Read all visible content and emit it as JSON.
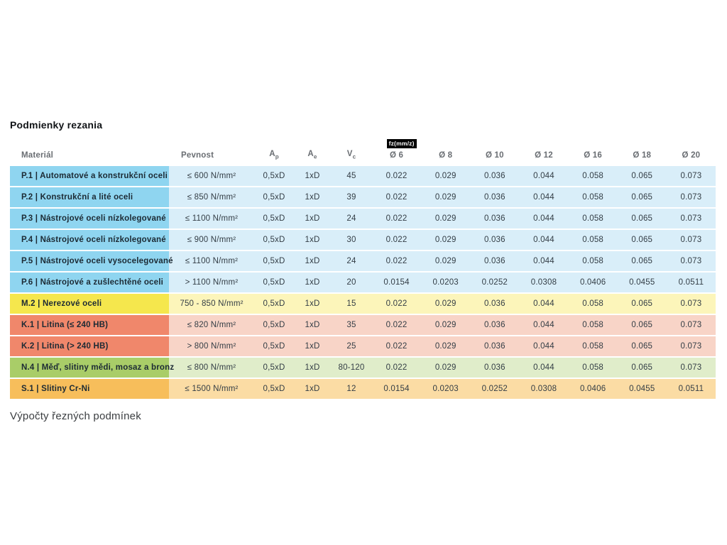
{
  "page": {
    "title": "Podmienky rezania",
    "footer_heading": "Výpočty řezných podmínek"
  },
  "table": {
    "fz_badge": "fz(mm/z)",
    "headers": {
      "material": "Materiál",
      "pevnost": "Pevnost",
      "ap_main": "A",
      "ap_sub": "p",
      "ae_main": "A",
      "ae_sub": "e",
      "vc_main": "V",
      "vc_sub": "c",
      "diameters": [
        "Ø 6",
        "Ø 8",
        "Ø 10",
        "Ø 12",
        "Ø 16",
        "Ø 18",
        "Ø 20"
      ]
    },
    "colors": {
      "steel": {
        "label": "#8fd5f0",
        "row": "#d9eef9"
      },
      "stainless": {
        "label": "#f5e74d",
        "row": "#fcf5ba"
      },
      "castiron": {
        "label": "#f0876b",
        "row": "#f8d4c7"
      },
      "nonferrous": {
        "label": "#a9cd68",
        "row": "#e0edca"
      },
      "superalloy": {
        "label": "#f7be5b",
        "row": "#fbdca4"
      }
    },
    "rows": [
      {
        "group": "steel",
        "material": "P.1 | Automatové a konstrukční oceli",
        "pevnost": "≤ 600 N/mm²",
        "ap": "0,5xD",
        "ae": "1xD",
        "vc": "45",
        "fz": [
          "0.022",
          "0.029",
          "0.036",
          "0.044",
          "0.058",
          "0.065",
          "0.073"
        ]
      },
      {
        "group": "steel",
        "material": "P.2 | Konstrukční a lité oceli",
        "pevnost": "≤ 850 N/mm²",
        "ap": "0,5xD",
        "ae": "1xD",
        "vc": "39",
        "fz": [
          "0.022",
          "0.029",
          "0.036",
          "0.044",
          "0.058",
          "0.065",
          "0.073"
        ]
      },
      {
        "group": "steel",
        "material": "P.3 | Nástrojové oceli nízkolegované",
        "pevnost": "≤ 1100 N/mm²",
        "ap": "0,5xD",
        "ae": "1xD",
        "vc": "24",
        "fz": [
          "0.022",
          "0.029",
          "0.036",
          "0.044",
          "0.058",
          "0.065",
          "0.073"
        ]
      },
      {
        "group": "steel",
        "material": "P.4 | Nástrojové oceli nízkolegované",
        "pevnost": "≤ 900 N/mm²",
        "ap": "0,5xD",
        "ae": "1xD",
        "vc": "30",
        "fz": [
          "0.022",
          "0.029",
          "0.036",
          "0.044",
          "0.058",
          "0.065",
          "0.073"
        ]
      },
      {
        "group": "steel",
        "material": "P.5 | Nástrojové oceli vysocelegované",
        "pevnost": "≤ 1100 N/mm²",
        "ap": "0,5xD",
        "ae": "1xD",
        "vc": "24",
        "fz": [
          "0.022",
          "0.029",
          "0.036",
          "0.044",
          "0.058",
          "0.065",
          "0.073"
        ]
      },
      {
        "group": "steel",
        "material": "P.6 | Nástrojové a zušlechtěné oceli",
        "pevnost": "> 1100 N/mm²",
        "ap": "0,5xD",
        "ae": "1xD",
        "vc": "20",
        "fz": [
          "0.0154",
          "0.0203",
          "0.0252",
          "0.0308",
          "0.0406",
          "0.0455",
          "0.0511"
        ]
      },
      {
        "group": "stainless",
        "material": "M.2 | Nerezové oceli",
        "pevnost": "750 - 850 N/mm²",
        "ap": "0,5xD",
        "ae": "1xD",
        "vc": "15",
        "fz": [
          "0.022",
          "0.029",
          "0.036",
          "0.044",
          "0.058",
          "0.065",
          "0.073"
        ]
      },
      {
        "group": "castiron",
        "material": "K.1 | Litina (≤ 240 HB)",
        "pevnost": "≤ 820 N/mm²",
        "ap": "0,5xD",
        "ae": "1xD",
        "vc": "35",
        "fz": [
          "0.022",
          "0.029",
          "0.036",
          "0.044",
          "0.058",
          "0.065",
          "0.073"
        ]
      },
      {
        "group": "castiron",
        "material": "K.2 | Litina (> 240 HB)",
        "pevnost": "> 800 N/mm²",
        "ap": "0,5xD",
        "ae": "1xD",
        "vc": "25",
        "fz": [
          "0.022",
          "0.029",
          "0.036",
          "0.044",
          "0.058",
          "0.065",
          "0.073"
        ]
      },
      {
        "group": "nonferrous",
        "material": "N.4 | Měď, slitiny mědi, mosaz a bronz",
        "pevnost": "≤ 800 N/mm²",
        "ap": "0,5xD",
        "ae": "1xD",
        "vc": "80-120",
        "fz": [
          "0.022",
          "0.029",
          "0.036",
          "0.044",
          "0.058",
          "0.065",
          "0.073"
        ]
      },
      {
        "group": "superalloy",
        "material": "S.1 | Slitiny Cr-Ni",
        "pevnost": "≤ 1500 N/mm²",
        "ap": "0,5xD",
        "ae": "1xD",
        "vc": "12",
        "fz": [
          "0.0154",
          "0.0203",
          "0.0252",
          "0.0308",
          "0.0406",
          "0.0455",
          "0.0511"
        ]
      }
    ]
  }
}
